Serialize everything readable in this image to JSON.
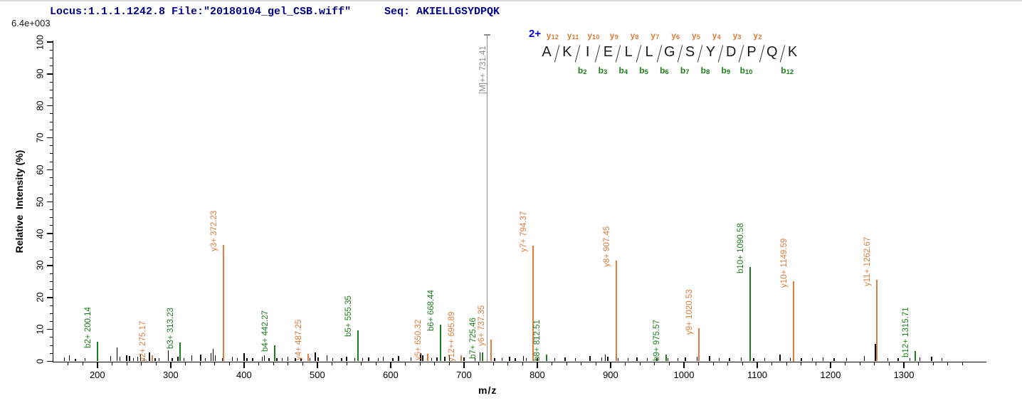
{
  "header": {
    "locus_file": "Locus:1.1.1.1242.8 File:\"20180104_gel_CSB.wiff\"",
    "seq_label": "Seq: AKIELLGSYDPQK",
    "max_intensity": "6.4e+003"
  },
  "colors": {
    "y_ion": "#DD7E3C",
    "b_ion": "#1E7E1E",
    "precursor": "#8a8a8a",
    "header_text": "#00008B",
    "charge_label": "#0000E0",
    "noise": "#000000",
    "axis": "#000000"
  },
  "sequence_annotation": {
    "charge": "2+",
    "residues": [
      "A",
      "K",
      "I",
      "E",
      "L",
      "L",
      "G",
      "S",
      "Y",
      "D",
      "P",
      "Q",
      "K"
    ],
    "gaps": [
      {
        "y": "y12",
        "b": null
      },
      {
        "y": "y11",
        "b": "b2"
      },
      {
        "y": "y10",
        "b": "b3"
      },
      {
        "y": "y9",
        "b": "b4"
      },
      {
        "y": "y8",
        "b": "b5"
      },
      {
        "y": "y7",
        "b": "b6"
      },
      {
        "y": "y6",
        "b": "b7"
      },
      {
        "y": "y5",
        "b": "b8"
      },
      {
        "y": "y4",
        "b": "b9"
      },
      {
        "y": "y3",
        "b": "b10"
      },
      {
        "y": "y2",
        "b": null
      },
      {
        "y": null,
        "b": "b12"
      }
    ]
  },
  "chart_data": {
    "type": "bar",
    "title": "",
    "xlabel": "m/z",
    "ylabel": "Relative  Intensity (%)",
    "xlim": [
      140,
      1410
    ],
    "ylim": [
      0,
      100
    ],
    "grid": false,
    "x_tick_labels": [
      200,
      300,
      400,
      500,
      600,
      700,
      800,
      900,
      1000,
      1100,
      1200,
      1300
    ],
    "x_minor_step": 20,
    "y_tick_labels": [
      0,
      10,
      20,
      30,
      40,
      50,
      60,
      70,
      80,
      90,
      100
    ],
    "y_minor_step": 2.5,
    "labeled_peaks": [
      {
        "label": "b2+ 200.14",
        "mz": 200.14,
        "intensity": 6.1,
        "ion": "b"
      },
      {
        "label": "y2+ 275.17",
        "mz": 275.17,
        "intensity": 2.0,
        "ion": "y"
      },
      {
        "label": "b3+ 313.23",
        "mz": 313.23,
        "intensity": 6.0,
        "ion": "b"
      },
      {
        "label": "y3+ 372.23",
        "mz": 372.23,
        "intensity": 36.4,
        "ion": "y"
      },
      {
        "label": "b4+ 442.27",
        "mz": 442.27,
        "intensity": 5.0,
        "ion": "b"
      },
      {
        "label": "y4+ 487.25",
        "mz": 487.25,
        "intensity": 2.4,
        "ion": "y"
      },
      {
        "label": "b5+ 555.35",
        "mz": 555.35,
        "intensity": 9.8,
        "ion": "b"
      },
      {
        "label": "y5+ 650.32",
        "mz": 650.32,
        "intensity": 2.3,
        "ion": "y"
      },
      {
        "label": "b6+ 668.44",
        "mz": 668.44,
        "intensity": 11.5,
        "ion": "b"
      },
      {
        "label": "y12++ 695.89",
        "mz": 695.89,
        "intensity": 1.9,
        "ion": "y"
      },
      {
        "label": "b7+ 725.46",
        "mz": 725.46,
        "intensity": 2.8,
        "ion": "b"
      },
      {
        "label": "y6+ 737.35",
        "mz": 737.35,
        "intensity": 6.8,
        "ion": "y"
      },
      {
        "label": "y7+ 794.37",
        "mz": 794.37,
        "intensity": 36.2,
        "ion": "y"
      },
      {
        "label": "b8+ 812.51",
        "mz": 812.51,
        "intensity": 2.1,
        "ion": "b"
      },
      {
        "label": "y8+ 907.45",
        "mz": 907.45,
        "intensity": 31.6,
        "ion": "y"
      },
      {
        "label": "b9+ 975.57",
        "mz": 975.57,
        "intensity": 2.2,
        "ion": "b"
      },
      {
        "label": "y9+ 1020.53",
        "mz": 1020.53,
        "intensity": 10.4,
        "ion": "y"
      },
      {
        "label": "b10+ 1090.58",
        "mz": 1090.58,
        "intensity": 29.5,
        "ion": "b"
      },
      {
        "label": "y10+ 1149.59",
        "mz": 1149.59,
        "intensity": 25.0,
        "ion": "y"
      },
      {
        "label": "y11+ 1262.67",
        "mz": 1262.67,
        "intensity": 25.5,
        "ion": "y"
      },
      {
        "label": "b12+ 1315.71",
        "mz": 1315.71,
        "intensity": 3.3,
        "ion": "b"
      }
    ],
    "precursor": {
      "label": "[M]++ 731.41",
      "mz": 731.41,
      "full_height": true
    },
    "noise_peaks": [
      [
        155,
        1.2
      ],
      [
        162,
        1.8
      ],
      [
        170,
        0.8
      ],
      [
        183,
        1.0
      ],
      [
        218,
        1.6
      ],
      [
        227,
        4.3
      ],
      [
        231,
        1.4
      ],
      [
        240,
        2.0
      ],
      [
        244,
        1.6
      ],
      [
        249,
        1.1
      ],
      [
        255,
        1.4
      ],
      [
        259,
        2.2
      ],
      [
        264,
        1.1
      ],
      [
        271,
        2.7
      ],
      [
        279,
        1.0
      ],
      [
        284,
        1.1
      ],
      [
        297,
        3.4
      ],
      [
        302,
        1.1
      ],
      [
        310,
        1.4
      ],
      [
        318,
        1.1
      ],
      [
        329,
        1.8
      ],
      [
        341,
        2.1
      ],
      [
        347,
        1.1
      ],
      [
        355,
        2.5
      ],
      [
        358,
        4.0
      ],
      [
        361,
        1.8
      ],
      [
        371,
        1.0
      ],
      [
        384,
        1.5
      ],
      [
        391,
        1.0
      ],
      [
        400,
        2.6
      ],
      [
        404,
        1.1
      ],
      [
        412,
        0.9
      ],
      [
        425,
        1.4
      ],
      [
        428,
        1.8
      ],
      [
        434,
        1.1
      ],
      [
        445,
        1.0
      ],
      [
        452,
        1.1
      ],
      [
        460,
        1.5
      ],
      [
        470,
        1.0
      ],
      [
        478,
        1.1
      ],
      [
        490,
        1.0
      ],
      [
        497,
        2.7
      ],
      [
        501,
        1.3
      ],
      [
        513,
        2.0
      ],
      [
        521,
        1.1
      ],
      [
        533,
        1.0
      ],
      [
        540,
        1.5
      ],
      [
        551,
        1.1
      ],
      [
        562,
        1.0
      ],
      [
        570,
        1.3
      ],
      [
        583,
        1.0
      ],
      [
        590,
        1.5
      ],
      [
        603,
        1.1
      ],
      [
        611,
        1.7
      ],
      [
        628,
        1.3
      ],
      [
        641,
        2.5
      ],
      [
        644,
        1.9
      ],
      [
        656,
        1.1
      ],
      [
        663,
        1.3
      ],
      [
        674,
        1.5
      ],
      [
        680,
        2.0
      ],
      [
        700,
        1.3
      ],
      [
        715,
        1.1
      ],
      [
        722,
        2.7
      ],
      [
        742,
        1.1
      ],
      [
        752,
        1.0
      ],
      [
        762,
        1.5
      ],
      [
        770,
        1.0
      ],
      [
        781,
        1.7
      ],
      [
        785,
        1.1
      ],
      [
        800,
        1.1
      ],
      [
        824,
        1.1
      ],
      [
        838,
        1.3
      ],
      [
        852,
        1.0
      ],
      [
        872,
        1.7
      ],
      [
        888,
        1.3
      ],
      [
        893,
        2.1
      ],
      [
        896,
        1.5
      ],
      [
        910,
        1.0
      ],
      [
        924,
        1.1
      ],
      [
        936,
        1.3
      ],
      [
        950,
        1.0
      ],
      [
        963,
        1.1
      ],
      [
        978,
        1.0
      ],
      [
        992,
        1.1
      ],
      [
        1002,
        1.3
      ],
      [
        1018,
        1.5
      ],
      [
        1035,
        1.7
      ],
      [
        1048,
        1.0
      ],
      [
        1062,
        1.1
      ],
      [
        1078,
        1.3
      ],
      [
        1095,
        1.0
      ],
      [
        1110,
        1.1
      ],
      [
        1131,
        2.1
      ],
      [
        1145,
        1.0
      ],
      [
        1160,
        1.1
      ],
      [
        1175,
        1.0
      ],
      [
        1190,
        1.3
      ],
      [
        1205,
        1.0
      ],
      [
        1222,
        1.1
      ],
      [
        1246,
        1.7
      ],
      [
        1261,
        5.5
      ],
      [
        1278,
        1.0
      ],
      [
        1292,
        1.1
      ],
      [
        1308,
        1.0
      ],
      [
        1322,
        1.3
      ],
      [
        1338,
        1.5
      ],
      [
        1352,
        1.0
      ]
    ]
  }
}
